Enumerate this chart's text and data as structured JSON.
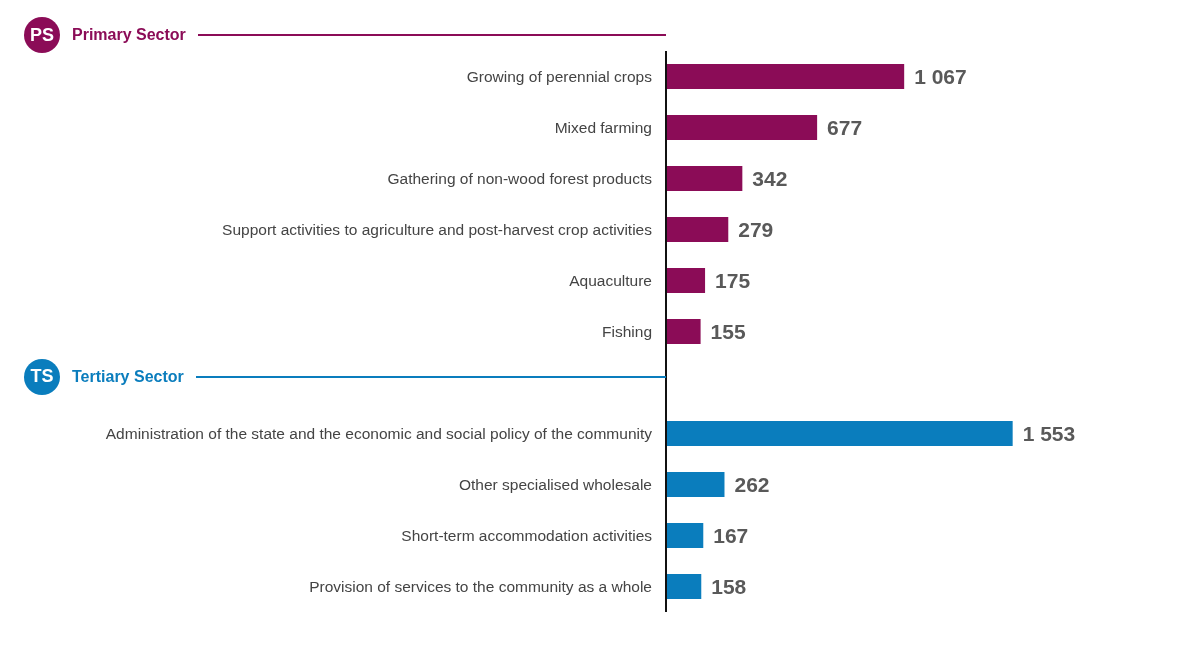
{
  "chart_data": {
    "type": "bar",
    "orientation": "horizontal",
    "categories": [
      "Growing of perennial crops",
      "Mixed farming",
      "Gathering of non-wood forest products",
      "Support activities to agriculture and post-harvest crop activities",
      "Aquaculture",
      "Fishing",
      null,
      "Administration of the state and the economic and social policy of the community",
      "Other specialised wholesale",
      "Short-term accommodation activities",
      "Provision of services to the community as a whole"
    ],
    "series": [
      {
        "name": "Primary Sector",
        "color": "#8b0c57",
        "values": [
          1067,
          677,
          342,
          279,
          175,
          155,
          null,
          null,
          null,
          null,
          null
        ],
        "value_labels": [
          "1 067",
          "677",
          "342",
          "279",
          "175",
          "155",
          null,
          null,
          null,
          null,
          null
        ]
      },
      {
        "name": "Tertiary Sector",
        "color": "#0a7dbd",
        "values": [
          null,
          null,
          null,
          null,
          null,
          null,
          null,
          1553,
          262,
          167,
          158
        ],
        "value_labels": [
          null,
          null,
          null,
          null,
          null,
          null,
          null,
          "1 553",
          "262",
          "167",
          "158"
        ]
      }
    ],
    "annotations": [
      "PS",
      "TS"
    ],
    "legend": "left"
  }
}
